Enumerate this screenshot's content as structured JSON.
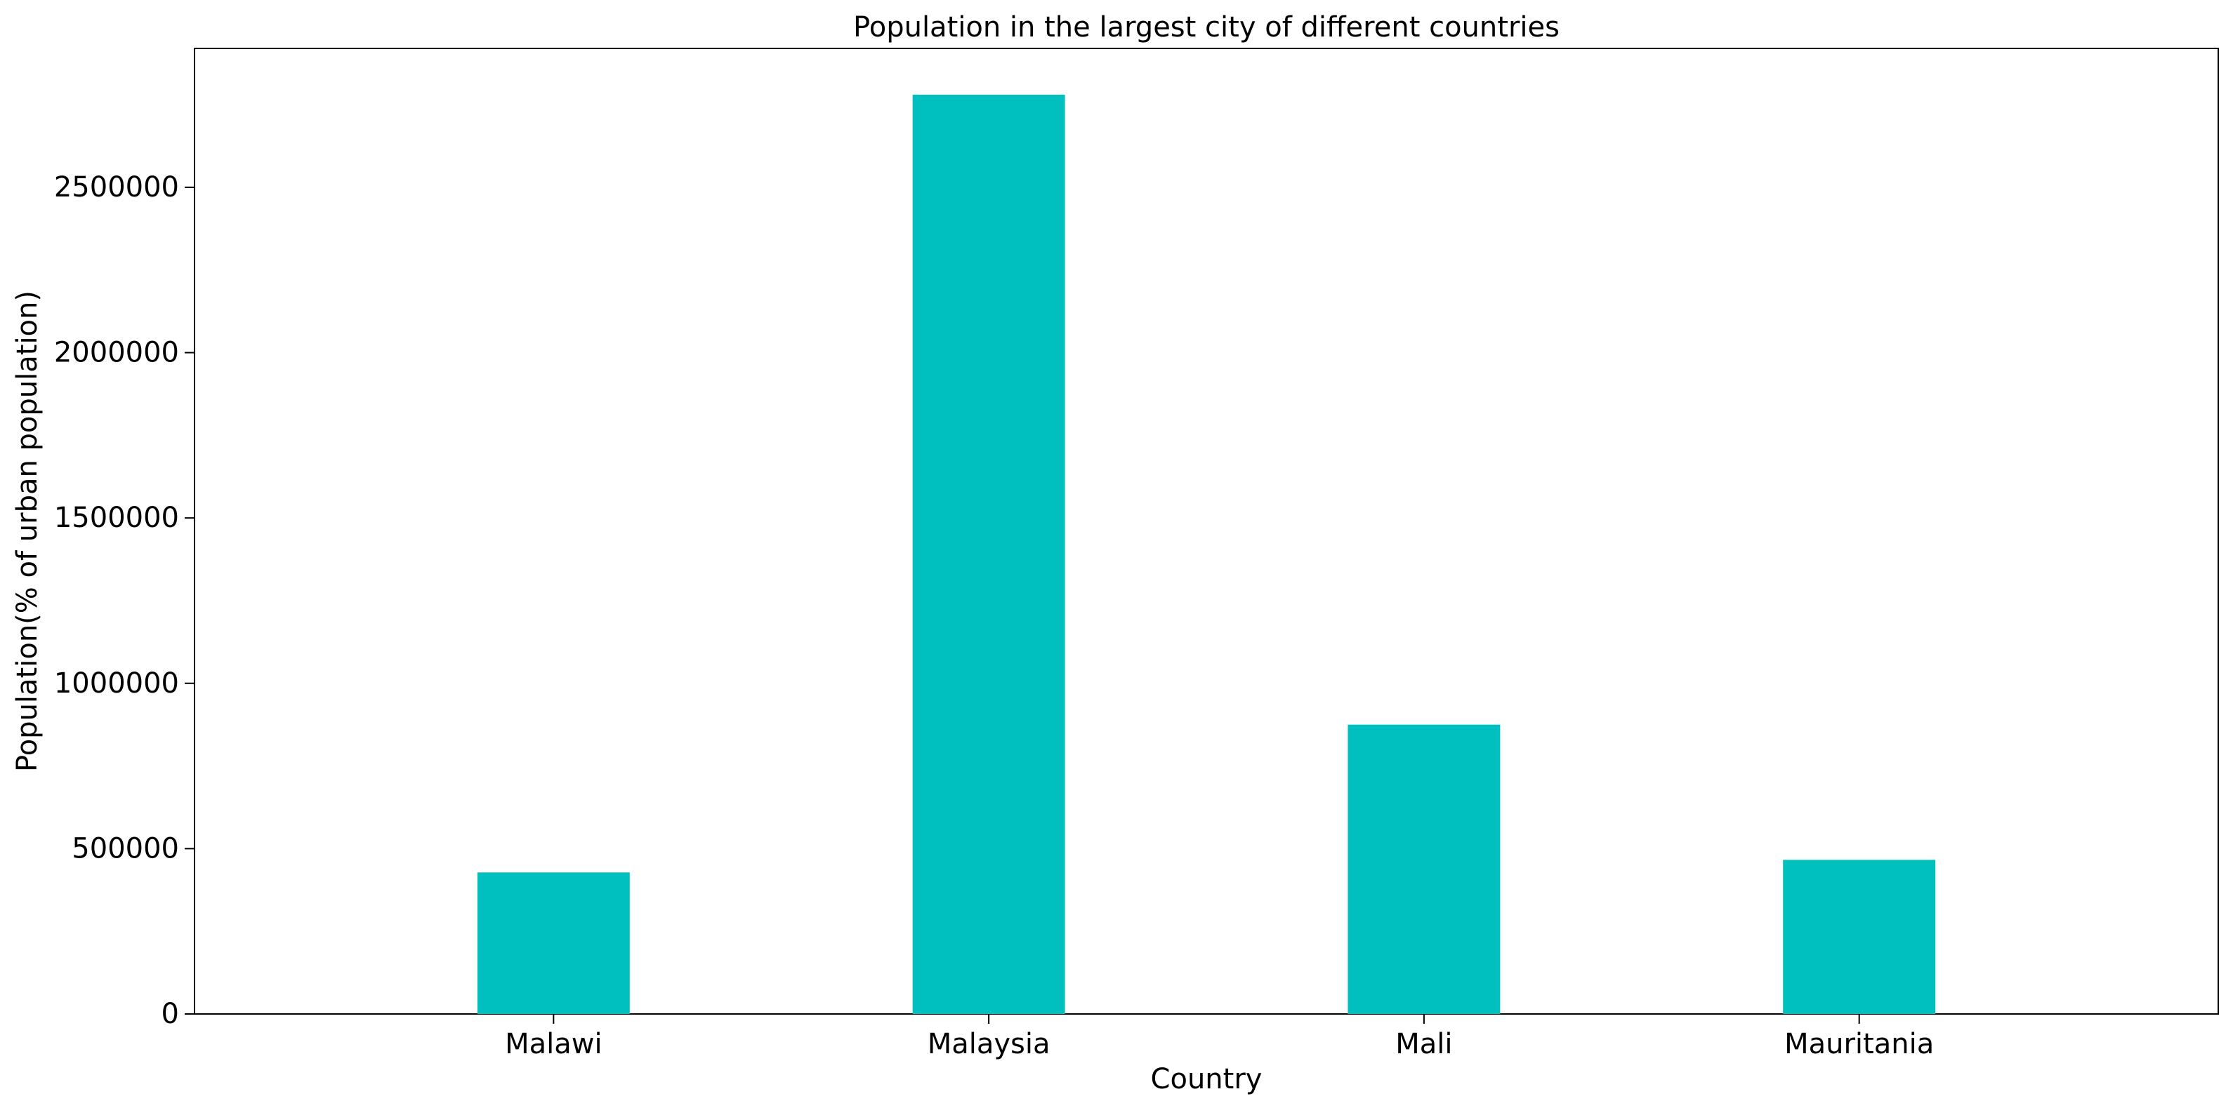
{
  "chart_data": {
    "type": "bar",
    "title": "Population in the largest city of different countries",
    "xlabel": "Country",
    "ylabel": "Population(% of urban population)",
    "categories": [
      "Malawi",
      "Malaysia",
      "Mali",
      "Mauritania"
    ],
    "values": [
      428000,
      2780000,
      875000,
      466000
    ],
    "ylim": [
      0,
      2920000
    ],
    "yticks": [
      0,
      500000,
      1000000,
      1500000,
      2000000,
      2500000
    ],
    "bar_color": "#00bfbf",
    "grid": false,
    "legend": "none"
  }
}
